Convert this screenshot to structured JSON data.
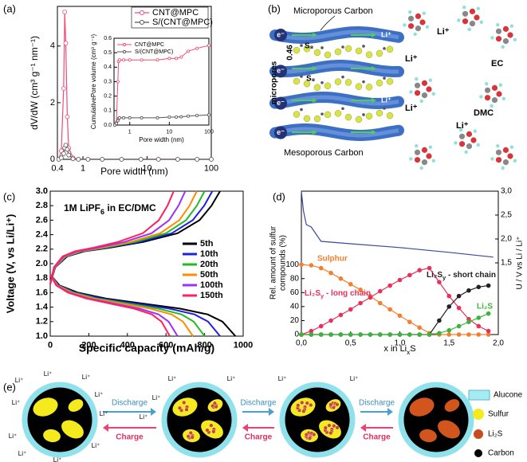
{
  "panel_labels": [
    "(a)",
    "(b)",
    "(c)",
    "(d)",
    "(e)"
  ],
  "chart_data": [
    {
      "type": "line",
      "xlabel": "Pore width (nm)",
      "ylabel": "dV/dW (cm³ g⁻¹ nm⁻¹)",
      "x_scale": "log",
      "xlim": [
        0.4,
        100
      ],
      "xticks": [
        0.4,
        1,
        10,
        100
      ],
      "ylim": [
        0,
        5.4
      ],
      "yticks": [
        0,
        2,
        4
      ],
      "legend": "upper right",
      "series": [
        {
          "name": "CNT@MPC",
          "color": "#f24a7a",
          "marker": "circle",
          "x": [
            0.42,
            0.46,
            0.5,
            0.52,
            0.54,
            0.57,
            0.6,
            0.7,
            0.85,
            1.2,
            2,
            4,
            8,
            15,
            30,
            60,
            100
          ],
          "values": [
            0,
            0.3,
            2.5,
            5.2,
            4.1,
            1.5,
            0.4,
            0.05,
            0,
            0,
            0,
            0,
            0,
            0,
            0,
            0,
            0
          ]
        },
        {
          "name": "S/(CNT@MPC)",
          "color": "#555555",
          "marker": "circle",
          "x": [
            0.42,
            0.46,
            0.5,
            0.52,
            0.54,
            0.57,
            0.6,
            0.7,
            0.85,
            1.2,
            2,
            4,
            8,
            15,
            30,
            60,
            100
          ],
          "values": [
            0,
            0.05,
            0.2,
            0.4,
            0.5,
            0.35,
            0.15,
            0.02,
            0,
            0,
            0,
            0,
            0,
            0,
            0,
            0,
            0
          ]
        }
      ]
    },
    {
      "type": "line",
      "xlabel": "Pore width (nm)",
      "ylabel": "CumulativePore volume (cm³ g⁻¹)",
      "x_scale": "log",
      "xlim": [
        0.4,
        100
      ],
      "xticks": [
        1,
        10,
        100
      ],
      "ylim": [
        0,
        0.6
      ],
      "yticks": [
        {
          "value": 0,
          "label": "0.0"
        },
        0.1,
        0.2,
        0.3,
        0.4,
        0.5,
        0.6
      ],
      "legend": "upper left",
      "series": [
        {
          "name": "CNT@MPC",
          "color": "#f24a7a",
          "marker": "circle",
          "x": [
            0.42,
            0.46,
            0.5,
            0.52,
            0.55,
            0.7,
            1,
            2,
            5,
            10,
            15,
            20,
            30,
            50,
            100
          ],
          "values": [
            0,
            0.02,
            0.3,
            0.44,
            0.45,
            0.45,
            0.45,
            0.45,
            0.45,
            0.46,
            0.46,
            0.47,
            0.51,
            0.53,
            0.55
          ]
        },
        {
          "name": "S/(CNT@MPC)",
          "color": "#555555",
          "marker": "circle",
          "x": [
            0.42,
            0.46,
            0.5,
            0.52,
            0.55,
            0.7,
            1,
            2,
            5,
            10,
            15,
            20,
            30,
            50,
            100
          ],
          "values": [
            0,
            0.01,
            0.03,
            0.045,
            0.05,
            0.05,
            0.05,
            0.05,
            0.05,
            0.055,
            0.055,
            0.057,
            0.062,
            0.066,
            0.07
          ]
        }
      ]
    },
    {
      "type": "line",
      "xlabel": "Specific capacity (mAh/g)",
      "ylabel": "Voltage (V, vs Li/Li⁺)",
      "annotation": [
        "1M LiPF",
        "6",
        " in EC/DMC"
      ],
      "xlim": [
        0,
        1000
      ],
      "xticks": [
        0,
        200,
        400,
        600,
        800,
        1000
      ],
      "ylim": [
        1.0,
        3.0
      ],
      "yticks": [
        {
          "value": 1.0,
          "label": "1.0"
        },
        1.2,
        1.4,
        1.6,
        1.8,
        {
          "value": 2.0,
          "label": "2.0"
        },
        2.2,
        2.4,
        2.6,
        2.8,
        {
          "value": 3.0,
          "label": "3.0"
        }
      ],
      "legend": "right",
      "series": [
        {
          "name": "5th",
          "color": "#000000",
          "x": [
            0,
            48,
            144,
            288,
            480,
            672,
            816,
            893,
            960,
            null,
            0,
            26,
            88,
            176,
            308,
            484,
            660,
            774,
            836,
            880
          ],
          "values": [
            1.85,
            1.7,
            1.6,
            1.52,
            1.45,
            1.38,
            1.3,
            1.2,
            1.0,
            null,
            1.72,
            1.95,
            2.1,
            2.17,
            2.22,
            2.3,
            2.42,
            2.6,
            2.8,
            3.0
          ]
        },
        {
          "name": "10th",
          "color": "#2020e0",
          "x": [
            0,
            44,
            132,
            264,
            440,
            616,
            748,
            818,
            880,
            null,
            0,
            25,
            84,
            168,
            294,
            462,
            630,
            739,
            798,
            840
          ],
          "values": [
            1.85,
            1.7,
            1.6,
            1.52,
            1.45,
            1.38,
            1.3,
            1.2,
            1.0,
            null,
            1.72,
            1.95,
            2.1,
            2.17,
            2.22,
            2.3,
            2.42,
            2.6,
            2.8,
            3.0
          ]
        },
        {
          "name": "20th",
          "color": "#22bb22",
          "x": [
            0,
            40,
            120,
            240,
            400,
            560,
            680,
            744,
            800,
            null,
            0,
            24,
            80,
            160,
            280,
            440,
            600,
            704,
            760,
            800
          ],
          "values": [
            1.85,
            1.7,
            1.6,
            1.52,
            1.45,
            1.38,
            1.3,
            1.2,
            1.0,
            null,
            1.72,
            1.95,
            2.1,
            2.17,
            2.22,
            2.3,
            2.42,
            2.6,
            2.8,
            3.0
          ]
        },
        {
          "name": "50th",
          "color": "#ff8c00",
          "x": [
            0,
            37,
            111,
            222,
            370,
            518,
            629,
            688,
            740,
            null,
            0,
            23,
            76,
            152,
            266,
            418,
            570,
            669,
            722,
            760
          ],
          "values": [
            1.85,
            1.7,
            1.6,
            1.52,
            1.45,
            1.38,
            1.3,
            1.2,
            1.0,
            null,
            1.72,
            1.95,
            2.1,
            2.17,
            2.22,
            2.3,
            2.42,
            2.6,
            2.8,
            3.0
          ]
        },
        {
          "name": "100th",
          "color": "#9b30ff",
          "x": [
            0,
            33,
            99,
            198,
            330,
            462,
            561,
            614,
            660,
            null,
            0,
            21,
            70,
            140,
            245,
            385,
            525,
            616,
            665,
            700
          ],
          "values": [
            1.85,
            1.7,
            1.6,
            1.52,
            1.45,
            1.38,
            1.3,
            1.2,
            1.0,
            null,
            1.72,
            1.95,
            2.1,
            2.17,
            2.22,
            2.3,
            2.42,
            2.6,
            2.8,
            3.0
          ]
        },
        {
          "name": "150th",
          "color": "#ff2060",
          "x": [
            0,
            31,
            93,
            186,
            310,
            434,
            527,
            577,
            620,
            null,
            0,
            19,
            64,
            128,
            224,
            352,
            480,
            563,
            608,
            640
          ],
          "values": [
            1.85,
            1.7,
            1.6,
            1.52,
            1.45,
            1.38,
            1.3,
            1.2,
            1.0,
            null,
            1.72,
            1.95,
            2.1,
            2.17,
            2.22,
            2.3,
            2.42,
            2.6,
            2.8,
            3.0
          ]
        }
      ]
    },
    {
      "type": "line",
      "xlabel": [
        "x in Li",
        "x",
        "S"
      ],
      "ylabel_lines": [
        "Rel. amount of sulfur",
        "compounds (%)"
      ],
      "y2label": "U / V vs Li / Li⁺",
      "x": [
        0,
        0.1,
        0.2,
        0.3,
        0.4,
        0.5,
        0.6,
        0.7,
        0.8,
        0.9,
        1.0,
        1.1,
        1.2,
        1.3,
        1.4,
        1.5,
        1.6,
        1.7,
        1.8,
        1.9
      ],
      "xlim": [
        0,
        2.0
      ],
      "xticks": [
        {
          "value": 0,
          "label": "0,0"
        },
        {
          "value": 0.5,
          "label": "0,5"
        },
        {
          "value": 1.0,
          "label": "1,0"
        },
        {
          "value": 1.5,
          "label": "1,5"
        },
        {
          "value": 2.0,
          "label": "2,0"
        }
      ],
      "ylim": [
        0,
        205
      ],
      "yticks": [
        0,
        20,
        40,
        60,
        80,
        100
      ],
      "y2lim": [
        0,
        3.0
      ],
      "y2ticks": [
        {
          "value": 1.5,
          "label": "1,5"
        },
        {
          "value": 2.0,
          "label": "2,0"
        },
        {
          "value": 2.5,
          "label": "2,5"
        },
        {
          "value": 3.0,
          "label": "3,0"
        }
      ],
      "series": [
        {
          "color": "#3a4a9a",
          "axis": "y2",
          "x": [
            0,
            0.02,
            0.05,
            0.1,
            0.15,
            0.2,
            0.5,
            1.0,
            1.5,
            1.95
          ],
          "values": [
            3.0,
            2.6,
            2.3,
            2.25,
            2.1,
            1.95,
            1.9,
            1.82,
            1.72,
            1.62
          ]
        },
        {
          "name": "Sulphur",
          "color": "#f08030",
          "marker": "dot",
          "values": [
            100,
            99,
            95,
            88,
            80,
            72,
            64,
            55,
            45,
            36,
            27,
            18,
            10,
            2,
            0,
            0,
            0,
            0,
            0,
            0
          ]
        },
        {
          "name": [
            "Li₂S",
            "y",
            " - long chain"
          ],
          "color": "#e8305a",
          "marker": "dot",
          "values": [
            0,
            5,
            12,
            20,
            28,
            36,
            45,
            53,
            62,
            70,
            78,
            85,
            92,
            95,
            75,
            55,
            38,
            22,
            12,
            5
          ]
        },
        {
          "name": [
            "Li₂S",
            "y",
            " - short chain"
          ],
          "color": "#222222",
          "marker": "dot",
          "values": [
            0,
            0,
            0,
            0,
            0,
            0,
            0,
            0,
            0,
            0,
            0,
            0,
            0,
            0,
            20,
            40,
            55,
            63,
            68,
            70
          ]
        },
        {
          "name": "Li₂S",
          "color": "#3cb43c",
          "marker": "dot",
          "values": [
            0,
            0,
            0,
            0,
            0,
            0,
            0,
            0,
            0,
            0,
            0,
            0,
            0,
            0,
            2,
            6,
            12,
            18,
            24,
            30
          ]
        }
      ]
    }
  ],
  "diagram_b": {
    "microporous": "Microporous Carbon",
    "spacing": 0.46,
    "micropores": "micropores",
    "mesoporous": "Mesoporous Carbon",
    "electron": "e⁻",
    "lithium": "Li⁺",
    "sulfur": "S₈",
    "ec": "EC",
    "dmc": "DMC"
  },
  "diagram_e": {
    "lithium": "Li⁺",
    "discharge": "Discharge",
    "charge": "Charge",
    "legend": [
      "Alucone",
      "Sulfur",
      "Li₂S",
      "Carbon"
    ]
  }
}
